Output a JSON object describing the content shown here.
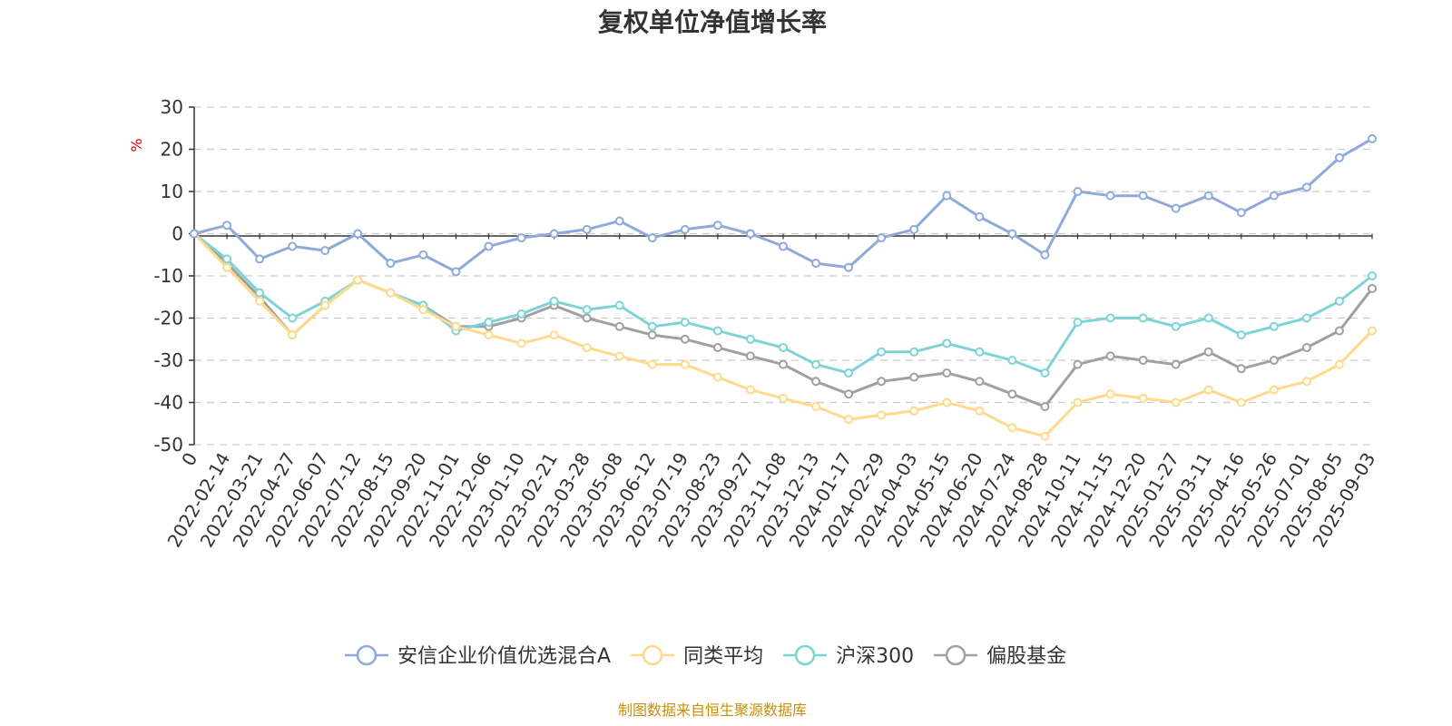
{
  "chart_data": {
    "type": "line",
    "title": "复权单位净值增长率",
    "unit_label": "%",
    "source_note": "制图数据来自恒生聚源数据库",
    "ylim": [
      -50,
      30
    ],
    "y_ticks": [
      "30",
      "20",
      "10",
      "0",
      "-10",
      "-20",
      "-30",
      "-40",
      "-50"
    ],
    "grid": true,
    "legend_position": "bottom",
    "x": [
      "0",
      "2022-02-14",
      "2022-03-21",
      "2022-04-27",
      "2022-06-07",
      "2022-07-12",
      "2022-08-15",
      "2022-09-20",
      "2022-11-01",
      "2022-12-06",
      "2023-01-10",
      "2023-02-21",
      "2023-03-28",
      "2023-05-08",
      "2023-06-12",
      "2023-07-19",
      "2023-08-23",
      "2023-09-27",
      "2023-11-08",
      "2023-12-13",
      "2024-01-17",
      "2024-02-29",
      "2024-04-03",
      "2024-05-15",
      "2024-06-20",
      "2024-07-24",
      "2024-08-28",
      "2024-10-11",
      "2024-11-15",
      "2024-12-20",
      "2025-01-27",
      "2025-03-11",
      "2025-04-16",
      "2025-05-26",
      "2025-07-01",
      "2025-08-05",
      "2025-09-03"
    ],
    "series": [
      {
        "name": "安信企业价值优选混合A",
        "color": "#8eaadb",
        "values": [
          0,
          2,
          -6,
          -3,
          -4,
          0,
          -7,
          -5,
          -9,
          -3,
          -1,
          0,
          1,
          3,
          -1,
          1,
          2,
          0,
          -3,
          -7,
          -8,
          -1,
          1,
          9,
          4,
          0,
          -5,
          10,
          9,
          9,
          6,
          9,
          5,
          9,
          11,
          18,
          22.5
        ]
      },
      {
        "name": "同类平均",
        "color": "#ffd98c",
        "values": [
          0,
          -8,
          -16,
          -24,
          -17,
          -11,
          -14,
          -18,
          -22,
          -24,
          -26,
          -24,
          -27,
          -29,
          -31,
          -31,
          -34,
          -37,
          -39,
          -41,
          -44,
          -43,
          -42,
          -40,
          -42,
          -46,
          -48,
          -40,
          -38,
          -39,
          -40,
          -37,
          -40,
          -37,
          -35,
          -31,
          -23
        ]
      },
      {
        "name": "沪深300",
        "color": "#7dd3d8",
        "values": [
          0,
          -6,
          -14,
          -20,
          -16,
          -11,
          -14,
          -17,
          -23,
          -21,
          -19,
          -16,
          -18,
          -17,
          -22,
          -21,
          -23,
          -25,
          -27,
          -31,
          -33,
          -28,
          -28,
          -26,
          -28,
          -30,
          -33,
          -21,
          -20,
          -20,
          -22,
          -20,
          -24,
          -22,
          -20,
          -16,
          -10
        ]
      },
      {
        "name": "偏股基金",
        "color": "#a0a0a0",
        "values": [
          0,
          -7,
          -15,
          -24,
          -17,
          -11,
          -14,
          -17,
          -22,
          -22,
          -20,
          -17,
          -20,
          -22,
          -24,
          -25,
          -27,
          -29,
          -31,
          -35,
          -38,
          -35,
          -34,
          -33,
          -35,
          -38,
          -41,
          -31,
          -29,
          -30,
          -31,
          -28,
          -32,
          -30,
          -27,
          -23,
          -13
        ]
      }
    ]
  }
}
